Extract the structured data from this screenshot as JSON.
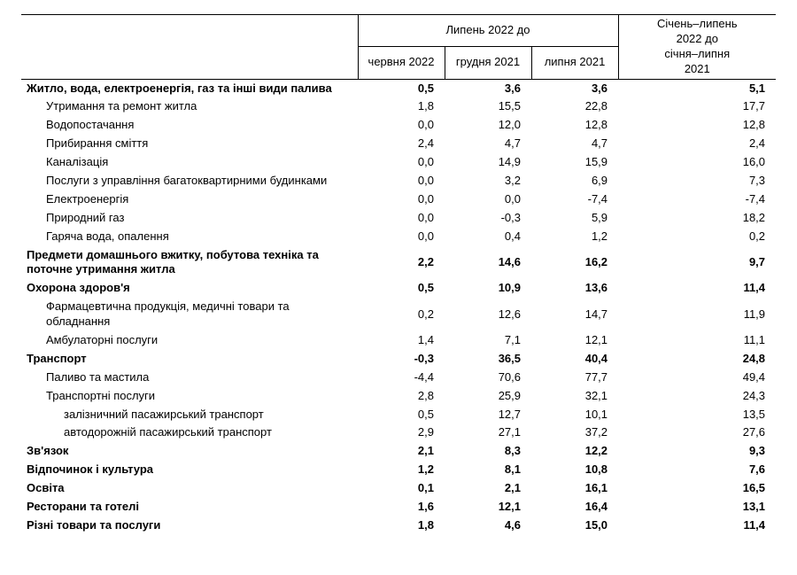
{
  "header": {
    "group1": "Липень 2022 до",
    "group2_line1": "Січень–липень",
    "group2_line2": "2022 до",
    "sub1": "червня 2022",
    "sub2": "грудня 2021",
    "sub3": "липня 2021",
    "sub4_line1": "січня–липня",
    "sub4_line2": "2021"
  },
  "rows": [
    {
      "label": "Житло, вода, електроенергія, газ та інші види палива",
      "v": [
        "0,5",
        "3,6",
        "3,6",
        "5,1"
      ],
      "bold": true,
      "indent": 0
    },
    {
      "label": "Утримання та ремонт житла",
      "v": [
        "1,8",
        "15,5",
        "22,8",
        "17,7"
      ],
      "bold": false,
      "indent": 1
    },
    {
      "label": "Водопостачання",
      "v": [
        "0,0",
        "12,0",
        "12,8",
        "12,8"
      ],
      "bold": false,
      "indent": 1
    },
    {
      "label": "Прибирання сміття",
      "v": [
        "2,4",
        "4,7",
        "4,7",
        "2,4"
      ],
      "bold": false,
      "indent": 1
    },
    {
      "label": "Каналізація",
      "v": [
        "0,0",
        "14,9",
        "15,9",
        "16,0"
      ],
      "bold": false,
      "indent": 1
    },
    {
      "label": "Послуги з управління багатоквартирними будинками",
      "v": [
        "0,0",
        "3,2",
        "6,9",
        "7,3"
      ],
      "bold": false,
      "indent": 1
    },
    {
      "label": "Електроенергія",
      "v": [
        "0,0",
        "0,0",
        "-7,4",
        "-7,4"
      ],
      "bold": false,
      "indent": 1
    },
    {
      "label": "Природний газ",
      "v": [
        "0,0",
        "-0,3",
        "5,9",
        "18,2"
      ],
      "bold": false,
      "indent": 1
    },
    {
      "label": "Гаряча вода, опалення",
      "v": [
        "0,0",
        "0,4",
        "1,2",
        "0,2"
      ],
      "bold": false,
      "indent": 1
    },
    {
      "label": "Предмети домашнього вжитку, побутова техніка та поточне утримання житла",
      "v": [
        "2,2",
        "14,6",
        "16,2",
        "9,7"
      ],
      "bold": true,
      "indent": 0
    },
    {
      "label": "Охорона здоров'я",
      "v": [
        "0,5",
        "10,9",
        "13,6",
        "11,4"
      ],
      "bold": true,
      "indent": 0
    },
    {
      "label": "Фармацевтична продукція, медичні товари та обладнання",
      "v": [
        "0,2",
        "12,6",
        "14,7",
        "11,9"
      ],
      "bold": false,
      "indent": 1
    },
    {
      "label": "Амбулаторні послуги",
      "v": [
        "1,4",
        "7,1",
        "12,1",
        "11,1"
      ],
      "bold": false,
      "indent": 1
    },
    {
      "label": "Транспорт",
      "v": [
        "-0,3",
        "36,5",
        "40,4",
        "24,8"
      ],
      "bold": true,
      "indent": 0
    },
    {
      "label": "Паливо та мастила",
      "v": [
        "-4,4",
        "70,6",
        "77,7",
        "49,4"
      ],
      "bold": false,
      "indent": 1
    },
    {
      "label": "Транспортні послуги",
      "v": [
        "2,8",
        "25,9",
        "32,1",
        "24,3"
      ],
      "bold": false,
      "indent": 1
    },
    {
      "label": "залізничний пасажирський транспорт",
      "v": [
        "0,5",
        "12,7",
        "10,1",
        "13,5"
      ],
      "bold": false,
      "indent": 2
    },
    {
      "label": "автодорожній пасажирський транспорт",
      "v": [
        "2,9",
        "27,1",
        "37,2",
        "27,6"
      ],
      "bold": false,
      "indent": 2
    },
    {
      "label": "Зв'язок",
      "v": [
        "2,1",
        "8,3",
        "12,2",
        "9,3"
      ],
      "bold": true,
      "indent": 0
    },
    {
      "label": "Відпочинок і культура",
      "v": [
        "1,2",
        "8,1",
        "10,8",
        "7,6"
      ],
      "bold": true,
      "indent": 0
    },
    {
      "label": "Освіта",
      "v": [
        "0,1",
        "2,1",
        "16,1",
        "16,5"
      ],
      "bold": true,
      "indent": 0
    },
    {
      "label": "Ресторани та готелі",
      "v": [
        "1,6",
        "12,1",
        "16,4",
        "13,1"
      ],
      "bold": true,
      "indent": 0
    },
    {
      "label": "Різні товари та послуги",
      "v": [
        "1,8",
        "4,6",
        "15,0",
        "11,4"
      ],
      "bold": true,
      "indent": 0
    }
  ]
}
